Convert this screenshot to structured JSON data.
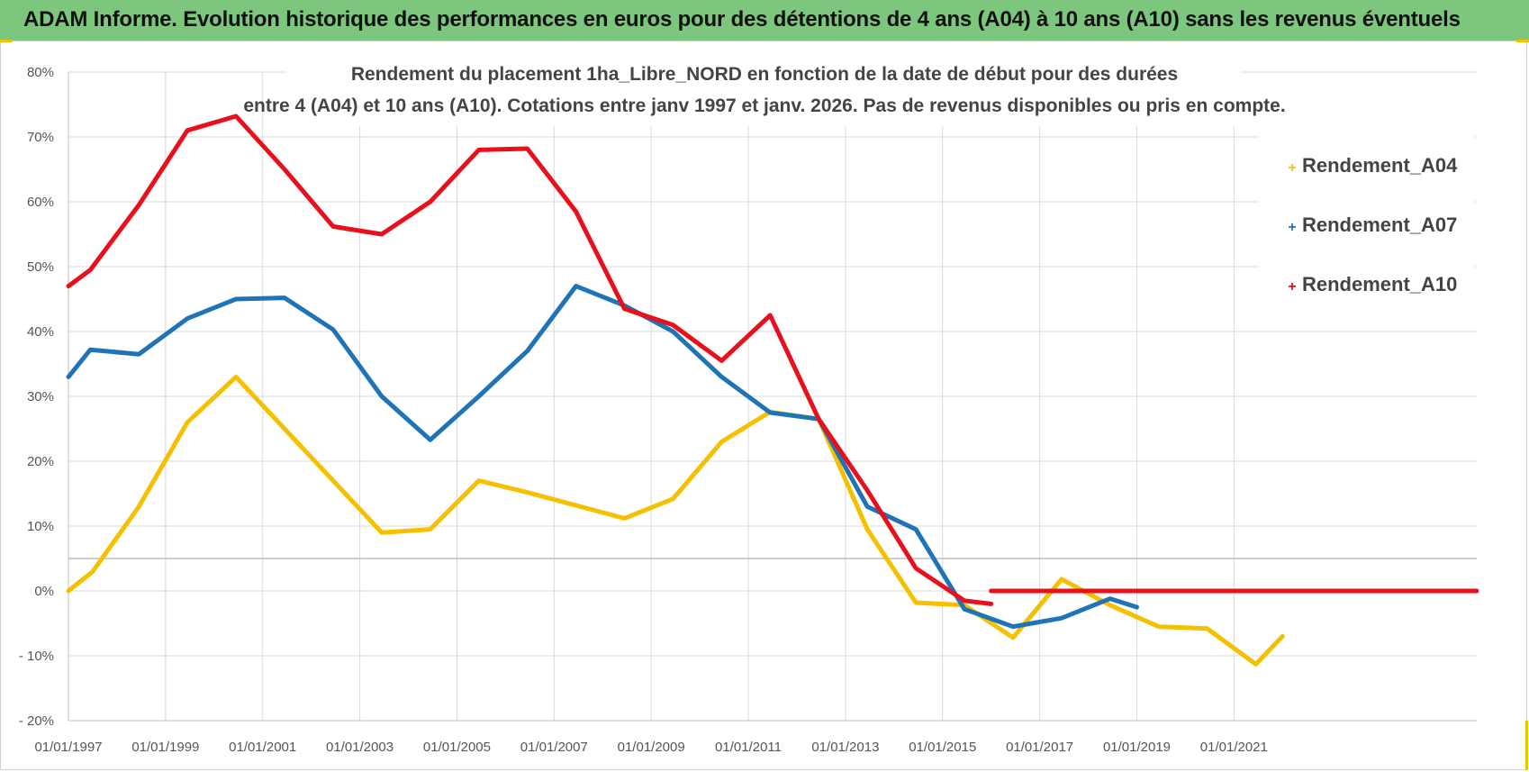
{
  "header": {
    "title": "ADAM Informe. Evolution historique des performances en euros pour des détentions de 4 ans (A04) à 10 ans (A10) sans les revenus éventuels"
  },
  "colors": {
    "header_bg": "#7dc67e",
    "A04": "#f5c000",
    "A07": "#1f73b7",
    "A10": "#e8101c",
    "grid": "#d9d9d9"
  },
  "chart_data": {
    "type": "line",
    "title_lines": [
      "Rendement du placement 1ha_Libre_NORD en fonction de la date de début pour des durées",
      "entre 4 (A04) et 10 ans (A10).  Cotations entre janv 1997 et janv. 2026. Pas de revenus disponibles ou pris en compte."
    ],
    "xlabel": "",
    "ylabel": "",
    "xlim": [
      1997.0,
      2026.0
    ],
    "ylim": [
      -20,
      80
    ],
    "y_ticks": [
      80,
      70,
      60,
      50,
      40,
      30,
      20,
      10,
      0,
      -10,
      -20
    ],
    "y_tick_labels": [
      "80%",
      "70%",
      "60%",
      "50%",
      "40%",
      "30%",
      "20%",
      "10%",
      "0%",
      "- 10%",
      "- 20%"
    ],
    "x_ticks": [
      1997,
      1999,
      2001,
      2003,
      2005,
      2007,
      2009,
      2011,
      2013,
      2015,
      2017,
      2019,
      2021
    ],
    "x_tick_labels": [
      "01/01/1997",
      "01/01/1999",
      "01/01/2001",
      "01/01/2003",
      "01/01/2005",
      "01/01/2007",
      "01/01/2009",
      "01/01/2011",
      "01/01/2013",
      "01/01/2015",
      "01/01/2017",
      "01/01/2019",
      "01/01/2021"
    ],
    "legend": {
      "position": "right",
      "entries": [
        "Rendement_A04",
        "Rendement_A07",
        "Rendement_A10"
      ]
    },
    "series": [
      {
        "name": "Rendement_A04",
        "key": "A04",
        "x": [
          1997.0,
          1997.5,
          1998.45,
          1999.45,
          2000.45,
          2001.45,
          2002.45,
          2003.45,
          2004.45,
          2005.45,
          2006.45,
          2007.45,
          2008.45,
          2009.45,
          2010.45,
          2011.45,
          2012.45,
          2013.45,
          2014.45,
          2015.45,
          2016.45,
          2017.45,
          2018.45,
          2019.45,
          2020.45,
          2021.45,
          2022.0
        ],
        "y": [
          0,
          3,
          13,
          26,
          33,
          25,
          17,
          9,
          9.5,
          17,
          15.2,
          13.2,
          11.2,
          14.2,
          23,
          27.6,
          26.5,
          9.5,
          -1.8,
          -2.2,
          -7.2,
          1.8,
          -2.2,
          -5.5,
          -5.8,
          -11.3,
          -7
        ]
      },
      {
        "name": "Rendement_A07",
        "key": "A07",
        "x": [
          1997.0,
          1997.45,
          1998.45,
          1999.45,
          2000.45,
          2001.45,
          2002.45,
          2003.45,
          2004.45,
          2005.45,
          2006.45,
          2007.45,
          2008.45,
          2009.45,
          2010.45,
          2011.45,
          2012.45,
          2013.45,
          2014.45,
          2015.45,
          2016.45,
          2017.45,
          2018.45,
          2019.0
        ],
        "y": [
          33,
          37.2,
          36.5,
          42,
          45,
          45.2,
          40.3,
          30,
          23.3,
          30,
          37,
          47,
          44,
          40,
          33,
          27.5,
          26.5,
          13,
          9.5,
          -2.8,
          -5.5,
          -4.2,
          -1.2,
          -2.5
        ]
      },
      {
        "name": "Rendement_A10",
        "key": "A10",
        "x": [
          1997.0,
          1997.45,
          1998.45,
          1999.45,
          2000.45,
          2001.45,
          2002.45,
          2003.45,
          2004.45,
          2005.45,
          2006.45,
          2007.45,
          2008.45,
          2009.45,
          2010.45,
          2011.45,
          2012.45,
          2013.45,
          2014.45,
          2015.45,
          2016.0
        ],
        "y": [
          47,
          49.5,
          59.5,
          71,
          73.2,
          65,
          56.2,
          55,
          60,
          68,
          68.2,
          58.5,
          43.5,
          41,
          35.5,
          42.5,
          26.5,
          15.5,
          3.5,
          -1.5,
          -2
        ]
      },
      {
        "name": "Rendement_A10 (flat)",
        "key": "A10",
        "x": [
          2016.0,
          2026.0
        ],
        "y": [
          0,
          0
        ]
      }
    ]
  }
}
